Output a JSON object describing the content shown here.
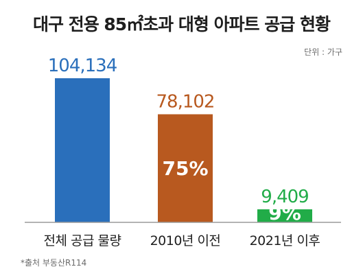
{
  "chart_data": {
    "type": "bar",
    "title": "대구 전용 85㎡초과 대형 아파트 공급 현황",
    "unit": "단위 : 가구",
    "source": "*출처 부동산R114",
    "categories": [
      "전체 공급 물량",
      "2010년 이전",
      "2021년 이후"
    ],
    "values": [
      104134,
      78102,
      9409
    ],
    "value_labels": [
      "104,134",
      "78,102",
      "9,409"
    ],
    "share_labels": [
      "",
      "75%",
      "9%"
    ],
    "colors": [
      "#2a6fbb",
      "#b8591f",
      "#21ac48"
    ],
    "baseline_color": "#9a9a9a",
    "ylim": [
      0,
      104134
    ],
    "grid": false,
    "legend": "none"
  }
}
